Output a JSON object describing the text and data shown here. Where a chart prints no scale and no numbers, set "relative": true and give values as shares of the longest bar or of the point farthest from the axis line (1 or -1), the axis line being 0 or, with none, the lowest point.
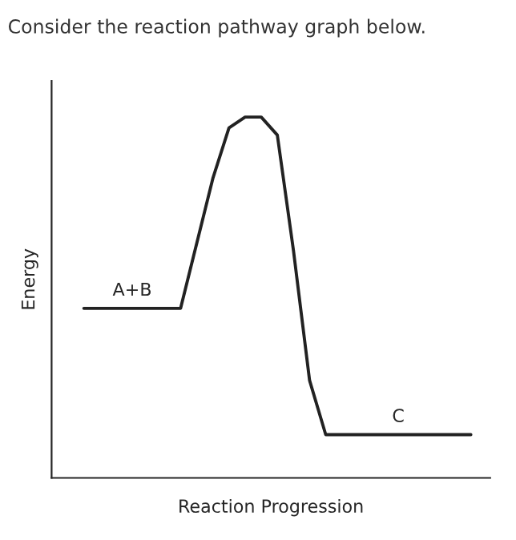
{
  "chart_data": {
    "type": "line",
    "title": "Consider the reaction pathway graph below.",
    "xlabel": "Reaction Progression",
    "ylabel": "Energy",
    "relative": true,
    "marker": "none",
    "line_style": "solid",
    "categories": [
      null,
      null,
      null,
      null,
      null,
      null,
      null,
      null,
      null,
      null,
      null,
      null,
      null,
      null,
      null,
      null,
      null,
      null,
      null,
      null,
      null,
      null,
      null,
      null,
      null
    ],
    "series": [
      {
        "color": "#222222",
        "values": [
          0.47,
          0.47,
          0.47,
          0.47,
          0.47,
          0.47,
          0.47,
          0.65,
          0.83,
          0.97,
          1.0,
          1.0,
          0.95,
          0.63,
          0.27,
          0.12,
          0.12,
          0.12,
          0.12,
          0.12,
          0.12,
          0.12,
          0.12,
          0.12,
          0.12
        ]
      }
    ],
    "annotations": [
      "A+B",
      "C"
    ]
  }
}
